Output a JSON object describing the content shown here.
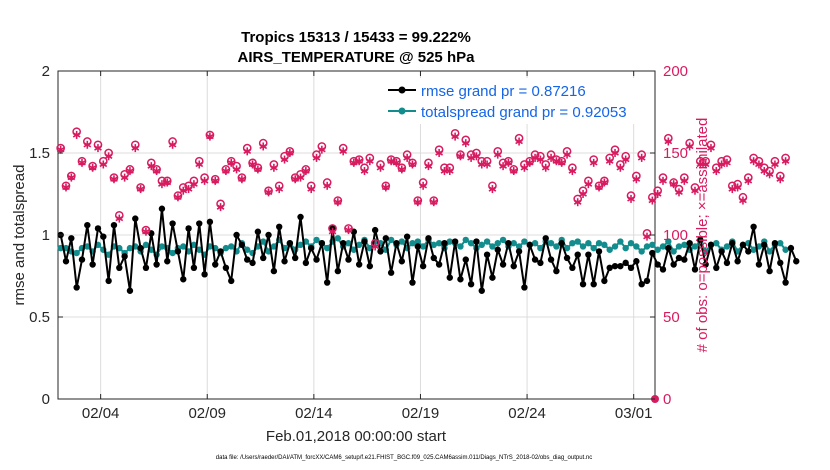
{
  "chart_data": {
    "type": "line",
    "title_line1": "Tropics 15313 / 15433 = 99.222%",
    "title_line2": "AIRS_TEMPERATURE @ 525 hPa",
    "xlabel": "Feb.01,2018 00:00:00 start",
    "ylabel_left": "rmse and totalspread",
    "ylabel_right": "# of obs: o=possible; ×=assimilated",
    "footnote": "data file: /Users/raeder/DAI/ATM_forcXX/CAM6_setup/f.e21.FHIST_BGC.f09_025.CAM6assim.011/Diags_NTrS_2018-02/obs_diag_output.nc",
    "xlim": [
      1.0,
      29.0
    ],
    "ylim_left": [
      0,
      2
    ],
    "ylim_right": [
      0,
      200
    ],
    "x_ticks": [
      3,
      8,
      13,
      18,
      23,
      28
    ],
    "x_tick_labels": [
      "02/04",
      "02/09",
      "02/14",
      "02/19",
      "02/24",
      "03/01"
    ],
    "y_ticks_left": [
      0,
      0.5,
      1,
      1.5,
      2
    ],
    "y_tick_labels_left": [
      "0",
      "0.5",
      "1",
      "1.5",
      "2"
    ],
    "y_ticks_right": [
      0,
      50,
      100,
      150,
      200
    ],
    "y_tick_labels_right": [
      "0",
      "50",
      "100",
      "150",
      "200"
    ],
    "legend_position": "top-right",
    "colors": {
      "rmse": "#000000",
      "spread": "#128c8c",
      "obs": "#d81b60",
      "legend_text": "#1565e6",
      "grid": "#dcdcdc",
      "axis": "#262626"
    },
    "series": [
      {
        "name": "rmse grand pr = 0.87216",
        "axis": "left",
        "x0": 1.125,
        "dx": 0.25,
        "values": [
          1.0,
          0.84,
          0.98,
          0.68,
          0.85,
          1.06,
          0.82,
          1.04,
          0.99,
          0.72,
          1.06,
          0.8,
          0.87,
          0.66,
          1.1,
          0.92,
          0.8,
          1.01,
          0.82,
          1.16,
          0.84,
          1.07,
          0.9,
          0.73,
          1.04,
          0.8,
          1.07,
          0.76,
          1.08,
          0.82,
          0.9,
          0.8,
          0.72,
          1.0,
          0.94,
          0.85,
          0.83,
          1.02,
          0.86,
          1.0,
          0.78,
          1.05,
          0.84,
          0.95,
          0.86,
          1.11,
          0.83,
          0.92,
          0.85,
          0.95,
          0.71,
          1.04,
          0.78,
          0.95,
          0.85,
          1.02,
          0.82,
          0.96,
          0.81,
          1.03,
          0.9,
          0.98,
          0.77,
          0.95,
          0.84,
          0.99,
          0.71,
          0.93,
          0.81,
          0.98,
          0.86,
          0.82,
          0.95,
          0.74,
          0.96,
          0.73,
          0.85,
          0.7,
          0.96,
          0.66,
          0.88,
          0.74,
          0.91,
          0.82,
          0.95,
          0.81,
          0.9,
          0.68,
          0.94,
          0.85,
          0.83,
          0.98,
          0.85,
          0.78,
          0.95,
          0.86,
          0.8,
          0.88,
          0.7,
          0.88,
          0.7,
          0.9,
          0.72,
          0.8,
          0.81,
          0.81,
          0.83,
          0.8,
          0.84,
          0.7,
          0.72,
          0.89,
          0.82,
          0.79,
          0.92,
          0.82,
          0.86,
          0.85,
          0.95,
          0.79,
          0.97,
          0.82,
          0.94,
          0.8,
          0.9,
          0.83,
          0.95,
          0.84,
          0.94,
          0.9,
          1.05,
          0.82,
          0.94,
          0.78,
          0.95,
          0.83,
          0.71,
          0.92,
          0.84
        ],
        "marker": "filled-circle"
      },
      {
        "name": "totalspread grand pr = 0.92053",
        "axis": "left",
        "x0": 1.125,
        "dx": 0.25,
        "values": [
          0.92,
          0.92,
          0.9,
          0.89,
          0.92,
          0.93,
          0.9,
          0.94,
          0.91,
          0.88,
          0.93,
          0.92,
          0.89,
          0.92,
          0.93,
          0.9,
          0.94,
          0.91,
          0.88,
          0.93,
          0.92,
          0.89,
          0.92,
          0.93,
          0.9,
          0.94,
          0.91,
          0.88,
          0.93,
          0.92,
          0.89,
          0.92,
          0.93,
          0.9,
          0.95,
          0.91,
          0.89,
          0.93,
          0.96,
          0.9,
          0.93,
          0.97,
          0.92,
          0.95,
          0.91,
          0.94,
          0.96,
          0.93,
          0.97,
          0.95,
          0.92,
          0.96,
          0.98,
          0.93,
          0.95,
          0.91,
          0.94,
          0.97,
          0.92,
          0.96,
          0.95,
          0.91,
          0.97,
          0.94,
          0.96,
          0.92,
          0.95,
          0.96,
          0.93,
          0.97,
          0.94,
          0.95,
          0.92,
          0.96,
          0.95,
          0.93,
          0.97,
          0.95,
          0.92,
          0.94,
          0.96,
          0.93,
          0.95,
          0.97,
          0.93,
          0.95,
          0.93,
          0.96,
          0.94,
          0.95,
          0.92,
          0.96,
          0.95,
          0.93,
          0.97,
          0.92,
          0.95,
          0.96,
          0.93,
          0.95,
          0.92,
          0.95,
          0.94,
          0.91,
          0.93,
          0.96,
          0.92,
          0.95,
          0.93,
          0.9,
          0.93,
          0.94,
          0.91,
          0.93,
          0.96,
          0.9,
          0.93,
          0.94,
          0.91,
          0.93,
          0.96,
          0.9,
          0.94,
          0.95,
          0.91,
          0.93,
          0.96,
          0.9,
          0.94,
          0.95,
          0.91,
          0.93,
          0.96,
          0.9,
          0.94,
          0.95,
          0.91
        ],
        "marker": "filled-circle"
      },
      {
        "name": "# of obs possible",
        "axis": "right",
        "x0": 1.125,
        "dx": 0.25,
        "values": [
          153,
          130,
          136,
          163,
          145,
          157,
          142,
          155,
          145,
          150,
          135,
          112,
          137,
          140,
          155,
          129,
          103,
          144,
          140,
          133,
          133,
          157,
          124,
          129,
          130,
          133,
          145,
          135,
          161,
          134,
          119,
          140,
          145,
          142,
          135,
          153,
          144,
          141,
          156,
          127,
          143,
          130,
          148,
          151,
          135,
          137,
          140,
          130,
          149,
          154,
          132,
          104,
          121,
          153,
          104,
          145,
          146,
          141,
          147,
          95,
          143,
          130,
          146,
          145,
          141,
          149,
          144,
          121,
          132,
          144,
          121,
          152,
          141,
          141,
          162,
          149,
          158,
          149,
          150,
          145,
          145,
          130,
          151,
          144,
          145,
          140,
          159,
          143,
          145,
          149,
          148,
          143,
          149,
          146,
          145,
          151,
          141,
          122,
          127,
          133,
          146,
          130,
          133,
          147,
          152,
          143,
          148,
          124,
          136,
          149,
          101,
          123,
          127,
          135,
          159,
          132,
          128,
          135,
          156,
          129,
          145,
          145,
          155,
          141,
          145,
          146,
          130,
          131,
          123,
          135,
          147,
          145,
          141,
          139,
          145,
          136,
          147
        ],
        "marker": "open-circle"
      },
      {
        "name": "# of obs assimilated",
        "axis": "right",
        "x0": 1.125,
        "dx": 0.25,
        "values": [
          152,
          129,
          135,
          161,
          144,
          155,
          141,
          153,
          143,
          148,
          134,
          110,
          135,
          139,
          153,
          128,
          102,
          142,
          139,
          131,
          132,
          155,
          123,
          127,
          128,
          131,
          143,
          133,
          160,
          133,
          117,
          139,
          144,
          140,
          134,
          151,
          143,
          140,
          154,
          126,
          141,
          128,
          146,
          150,
          134,
          135,
          139,
          128,
          147,
          152,
          130,
          102,
          120,
          151,
          103,
          144,
          145,
          139,
          145,
          93,
          141,
          129,
          145,
          144,
          140,
          147,
          143,
          120,
          130,
          142,
          120,
          150,
          139,
          139,
          160,
          148,
          156,
          147,
          148,
          143,
          143,
          128,
          149,
          142,
          144,
          139,
          157,
          141,
          144,
          147,
          146,
          141,
          147,
          145,
          144,
          149,
          139,
          120,
          125,
          131,
          144,
          129,
          132,
          145,
          150,
          141,
          146,
          122,
          134,
          147,
          99,
          121,
          125,
          133,
          157,
          131,
          126,
          133,
          154,
          127,
          143,
          143,
          153,
          139,
          143,
          144,
          128,
          129,
          121,
          133,
          145,
          143,
          139,
          137,
          143,
          134,
          145
        ],
        "marker": "asterisk"
      }
    ]
  }
}
